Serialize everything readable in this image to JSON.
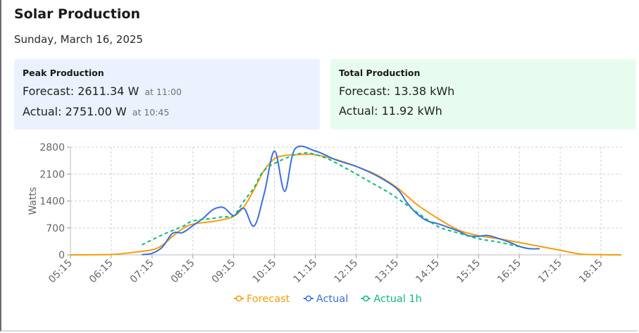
{
  "header": {
    "title": "Solar Production",
    "date": "Sunday, March 16, 2025"
  },
  "peak": {
    "heading": "Peak Production",
    "forecast_label": "Forecast:",
    "forecast_value": "2611.34 W",
    "forecast_time": "at 11:00",
    "actual_label": "Actual:",
    "actual_value": "2751.00 W",
    "actual_time": "at 10:45"
  },
  "total": {
    "heading": "Total Production",
    "forecast_label": "Forecast:",
    "forecast_value": "13.38 kWh",
    "actual_label": "Actual:",
    "actual_value": "11.92 kWh"
  },
  "colors": {
    "forecast": "#f59e0b",
    "actual": "#3b6fe0",
    "actual_1h": "#10b981",
    "grid": "#cfcfcf",
    "axis_text": "#666666",
    "peak_bg": "#ebf2fd",
    "total_bg": "#e8fbef"
  },
  "chart_data": {
    "type": "line",
    "ylabel": "Watts",
    "xlabel": "",
    "ylim": [
      0,
      2800
    ],
    "yticks": [
      0,
      700,
      1400,
      2100,
      2800
    ],
    "x_ticks": [
      "05:15",
      "06:15",
      "07:15",
      "08:15",
      "09:15",
      "10:15",
      "11:15",
      "12:15",
      "13:15",
      "14:15",
      "15:15",
      "16:15",
      "17:15",
      "18:15"
    ],
    "x_range": [
      "05:15",
      "18:45"
    ],
    "grid": true,
    "legend_position": "bottom",
    "series": [
      {
        "name": "Forecast",
        "key": "forecast",
        "dashed": false,
        "points": [
          [
            "05:15",
            0
          ],
          [
            "06:15",
            10
          ],
          [
            "06:45",
            60
          ],
          [
            "07:15",
            130
          ],
          [
            "07:30",
            250
          ],
          [
            "07:45",
            480
          ],
          [
            "08:00",
            680
          ],
          [
            "08:15",
            800
          ],
          [
            "08:45",
            870
          ],
          [
            "09:00",
            920
          ],
          [
            "09:15",
            1000
          ],
          [
            "09:30",
            1250
          ],
          [
            "09:45",
            1700
          ],
          [
            "10:00",
            2200
          ],
          [
            "10:15",
            2500
          ],
          [
            "10:30",
            2580
          ],
          [
            "11:00",
            2611
          ],
          [
            "11:15",
            2600
          ],
          [
            "11:45",
            2480
          ],
          [
            "12:15",
            2300
          ],
          [
            "12:45",
            2080
          ],
          [
            "13:15",
            1750
          ],
          [
            "13:45",
            1300
          ],
          [
            "14:15",
            950
          ],
          [
            "14:45",
            650
          ],
          [
            "15:15",
            500
          ],
          [
            "15:45",
            420
          ],
          [
            "16:15",
            320
          ],
          [
            "16:45",
            220
          ],
          [
            "17:15",
            120
          ],
          [
            "17:45",
            20
          ],
          [
            "18:15",
            5
          ],
          [
            "18:45",
            0
          ]
        ]
      },
      {
        "name": "Actual",
        "key": "actual",
        "dashed": false,
        "points": [
          [
            "07:00",
            5
          ],
          [
            "07:15",
            40
          ],
          [
            "07:30",
            200
          ],
          [
            "07:45",
            560
          ],
          [
            "08:00",
            580
          ],
          [
            "08:15",
            760
          ],
          [
            "08:30",
            950
          ],
          [
            "08:45",
            1180
          ],
          [
            "09:00",
            1230
          ],
          [
            "09:15",
            1020
          ],
          [
            "09:30",
            1210
          ],
          [
            "09:45",
            750
          ],
          [
            "10:00",
            1600
          ],
          [
            "10:15",
            2700
          ],
          [
            "10:30",
            1650
          ],
          [
            "10:45",
            2751
          ],
          [
            "11:15",
            2700
          ],
          [
            "11:45",
            2470
          ],
          [
            "12:15",
            2300
          ],
          [
            "12:45",
            2060
          ],
          [
            "13:15",
            1720
          ],
          [
            "13:30",
            1350
          ],
          [
            "13:45",
            1060
          ],
          [
            "14:00",
            880
          ],
          [
            "14:15",
            810
          ],
          [
            "14:45",
            620
          ],
          [
            "15:00",
            500
          ],
          [
            "15:15",
            480
          ],
          [
            "15:30",
            500
          ],
          [
            "16:00",
            330
          ],
          [
            "16:15",
            220
          ],
          [
            "16:30",
            160
          ],
          [
            "16:45",
            160
          ]
        ]
      },
      {
        "name": "Actual 1h",
        "key": "actual_1h",
        "dashed": true,
        "points": [
          [
            "07:00",
            260
          ],
          [
            "07:30",
            520
          ],
          [
            "08:00",
            740
          ],
          [
            "08:15",
            880
          ],
          [
            "08:45",
            950
          ],
          [
            "09:00",
            990
          ],
          [
            "09:15",
            1020
          ],
          [
            "09:30",
            1400
          ],
          [
            "09:45",
            1750
          ],
          [
            "10:00",
            2200
          ],
          [
            "10:30",
            2500
          ],
          [
            "11:00",
            2650
          ],
          [
            "11:30",
            2520
          ],
          [
            "12:00",
            2250
          ],
          [
            "12:30",
            1950
          ],
          [
            "13:00",
            1650
          ],
          [
            "13:15",
            1480
          ],
          [
            "13:45",
            1100
          ],
          [
            "14:15",
            740
          ],
          [
            "14:45",
            570
          ],
          [
            "15:15",
            420
          ],
          [
            "15:45",
            330
          ],
          [
            "16:15",
            210
          ]
        ]
      }
    ]
  }
}
